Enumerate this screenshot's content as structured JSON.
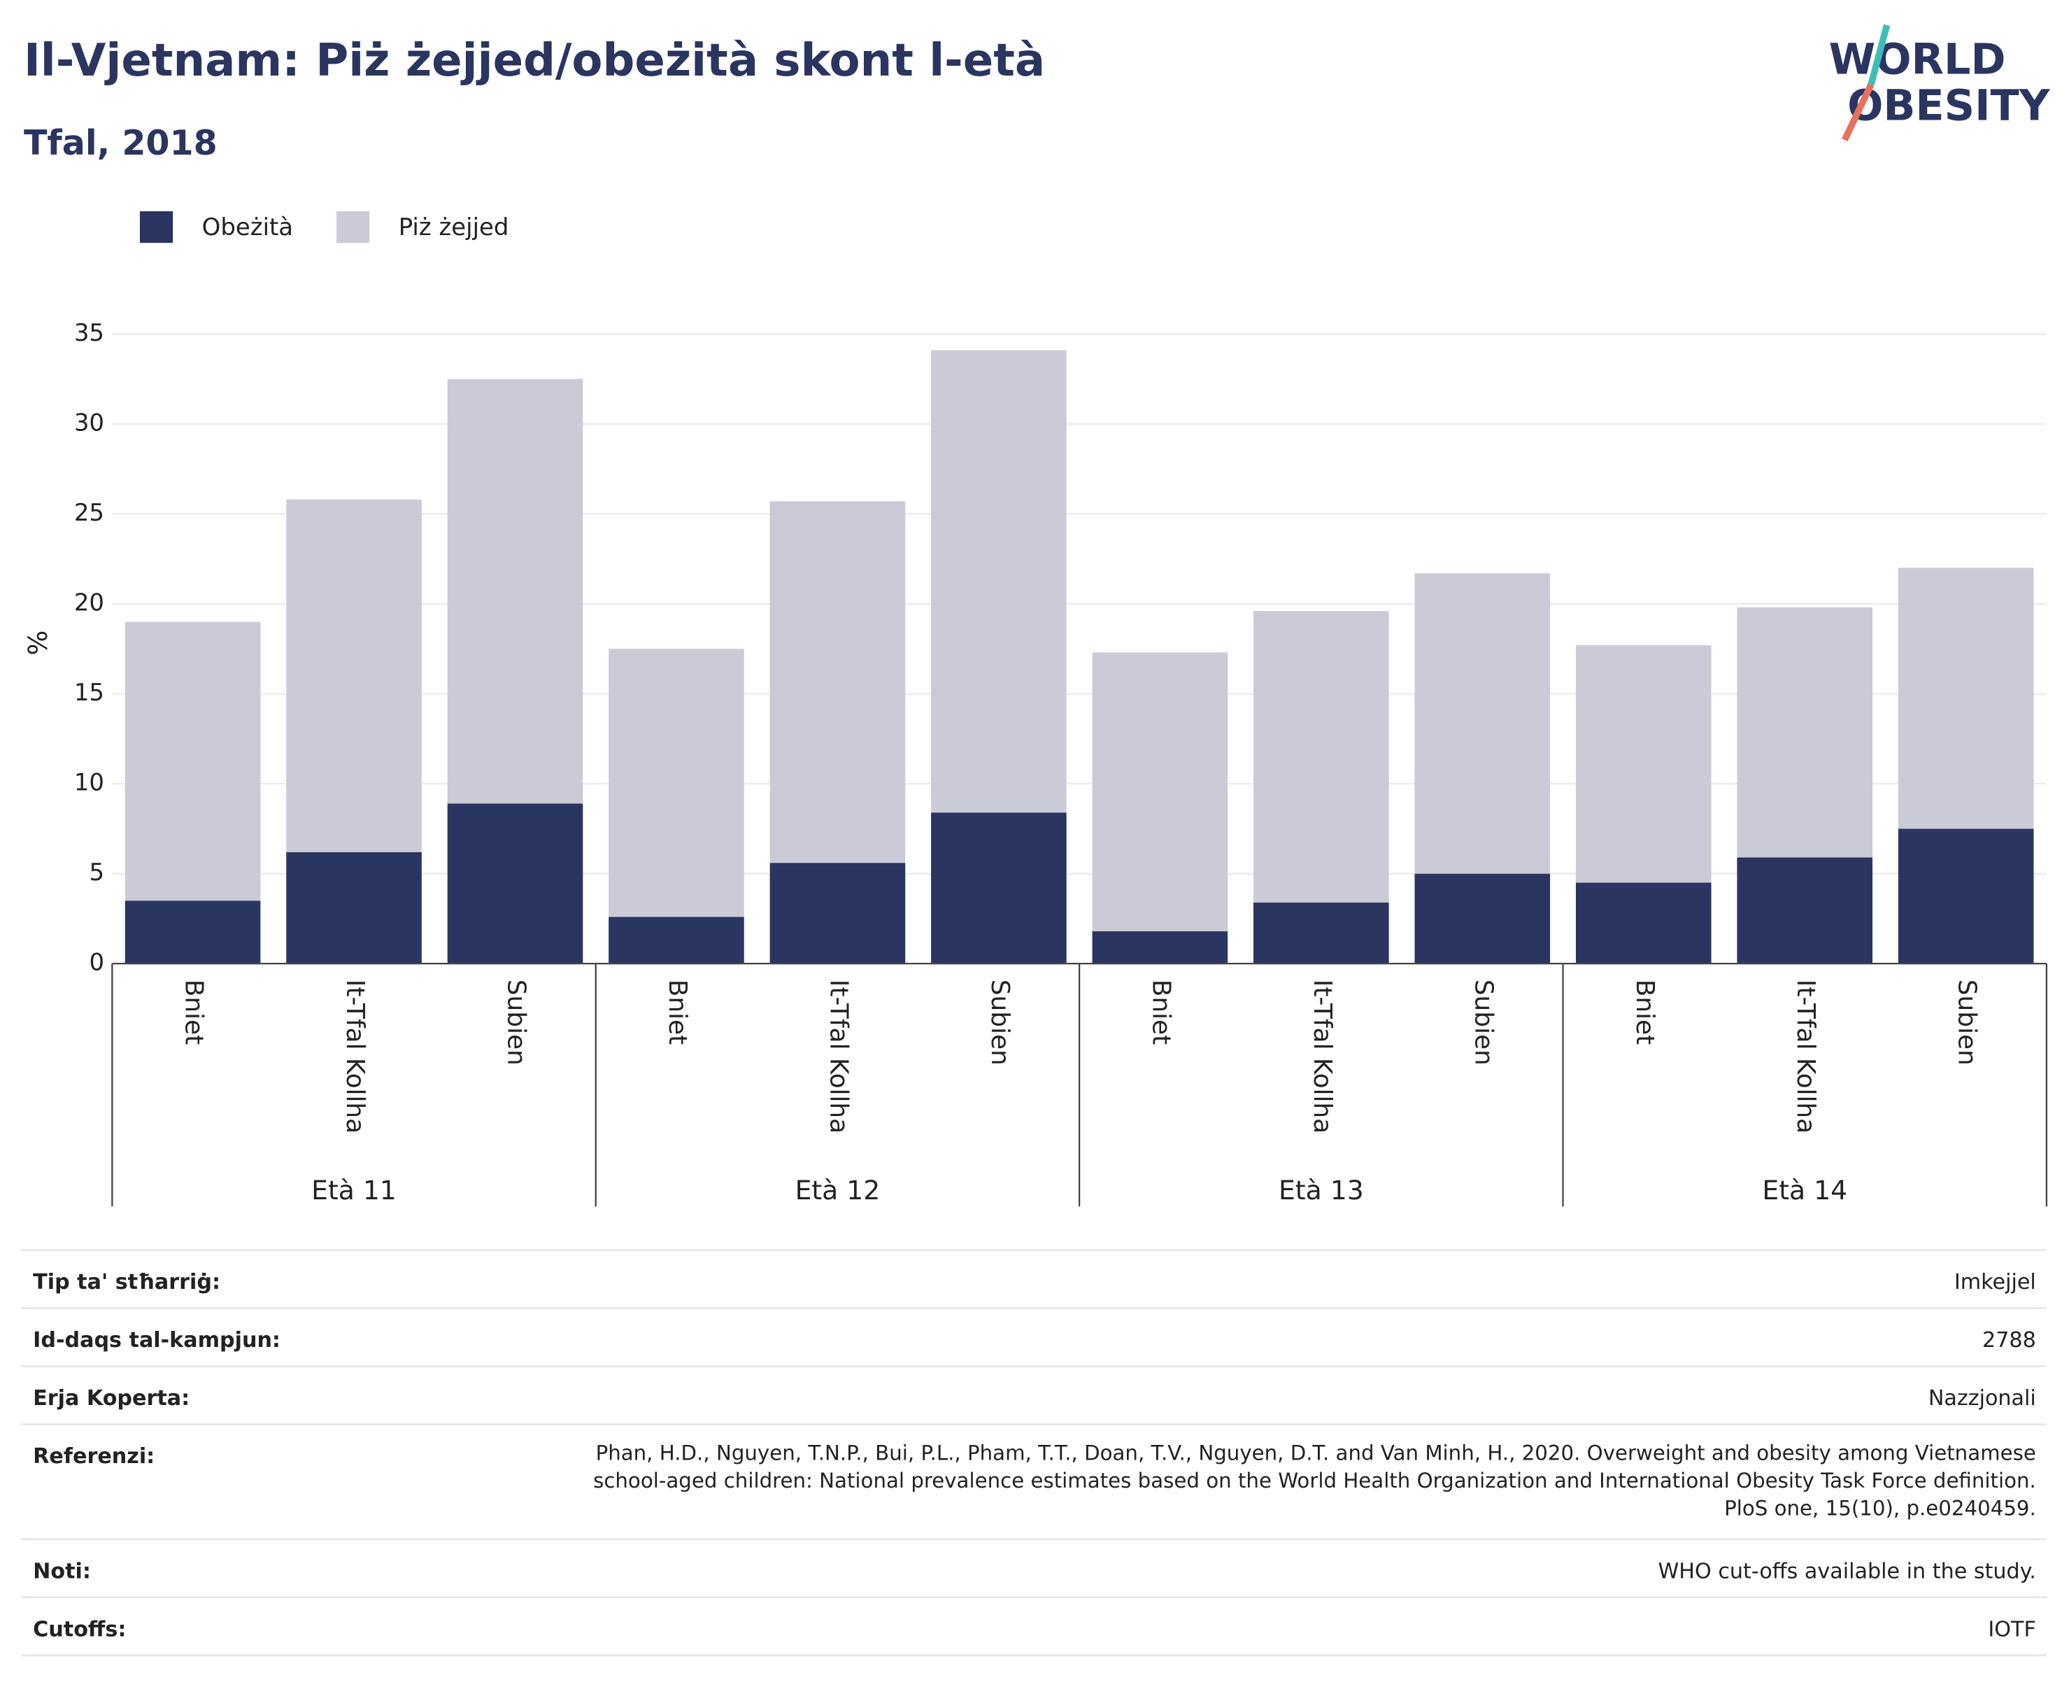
{
  "chart_data": {
    "type": "stacked_bar",
    "title": "Il-Vjetnam: Piż żejjed/obeżità skont l-età",
    "subtitle": "Tfal, 2018",
    "ylabel": "%",
    "categories": [
      "Bniet",
      "It-Tfal Kollha",
      "Subien",
      "Bniet",
      "It-Tfal Kollha",
      "Subien",
      "Bniet",
      "It-Tfal Kollha",
      "Subien",
      "Bniet",
      "It-Tfal Kollha",
      "Subien"
    ],
    "groups": [
      "Età 11",
      "Età 12",
      "Età 13",
      "Età 14"
    ],
    "series": [
      {
        "name": "Obeżità",
        "color": "#2a3561",
        "values": [
          3.5,
          6.2,
          8.9,
          2.6,
          5.6,
          8.4,
          1.8,
          3.4,
          5.0,
          4.5,
          5.9,
          7.5
        ]
      },
      {
        "name": "Piż żejjed",
        "color": "#cacbd6",
        "values": [
          15.5,
          19.6,
          23.6,
          14.9,
          20.1,
          25.7,
          15.5,
          16.2,
          16.7,
          13.2,
          13.9,
          14.5
        ]
      }
    ],
    "ylim": [
      0,
      35
    ],
    "yticks": [
      0,
      5,
      10,
      15,
      20,
      25,
      30,
      35
    ],
    "grid": true,
    "legend": "top-left"
  },
  "logo": [
    "WORLD",
    "OBESITY"
  ],
  "info_table": [
    [
      "Tip ta' stħarriġ:",
      "Imkejjel"
    ],
    [
      "Id-daqs tal-kampjun:",
      "2788"
    ],
    [
      "Erja Koperta:",
      "Nazzjonali"
    ],
    [
      "Referenzi:",
      "Phan, H.D., Nguyen, T.N.P., Bui, P.L., Pham, T.T., Doan, T.V., Nguyen, D.T. and Van Minh, H., 2020. Overweight and obesity among Vietnamese school-aged children: National prevalence estimates based on the World Health Organization and International Obesity Task Force definition. PloS one, 15(10), p.e0240459."
    ],
    [
      "Noti:",
      "WHO cut-offs available in the study."
    ],
    [
      "Cutoffs:",
      "IOTF"
    ]
  ]
}
